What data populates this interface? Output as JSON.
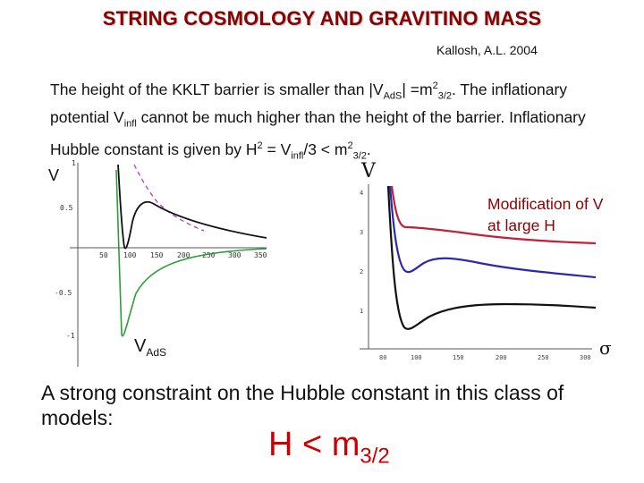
{
  "slide": {
    "title": "STRING COSMOLOGY AND GRAVITINO MASS",
    "author": "Kallosh, A.L. 2004",
    "para": {
      "t1": "The height of the KKLT barrier is smaller than |V",
      "s1": "AdS",
      "t2": "| =m",
      "sp1": "2",
      "s2": "3/2",
      "t3": ". The inflationary potential V",
      "s3": "infl",
      "t4": " cannot be much higher than the height of the barrier. Inflationary Hubble constant is given by H",
      "sp2": "2",
      "t5": " = V",
      "s4": "infl",
      "t6": "/3 < m",
      "sp3": "2",
      "s5": "3/2",
      "t7": "."
    },
    "left_plot_v_label": "V",
    "vads_main": "V",
    "vads_sub": "AdS",
    "right_plot": {
      "y_label": "V",
      "x_label": "σ",
      "y_ticks": [
        "1",
        "2",
        "3",
        "4"
      ],
      "x_ticks": [
        "100",
        "150",
        "200",
        "250",
        "300"
      ],
      "partial_tick_left": "80"
    },
    "left_plot": {
      "x_ticks": [
        "50",
        "100",
        "150",
        "200",
        "250",
        "300",
        "350"
      ],
      "y_ticks": [
        "1",
        "0.5",
        "-0.5",
        "-1"
      ]
    },
    "modification_note": "Modification of V at large H",
    "constraint_text": "A strong constraint on the Hubble constant in this class of models:",
    "h_main": "H < m",
    "h_sub": "3/2"
  },
  "colors": {
    "title": "#8b0000",
    "note": "#8b0000",
    "formula": "#cc0000",
    "curve_red": "#c0203a",
    "curve_blue": "#2a2aa8",
    "curve_black": "#111111",
    "curve_green": "#2f9e3a",
    "curve_purple_dashed": "#b03ad0"
  }
}
